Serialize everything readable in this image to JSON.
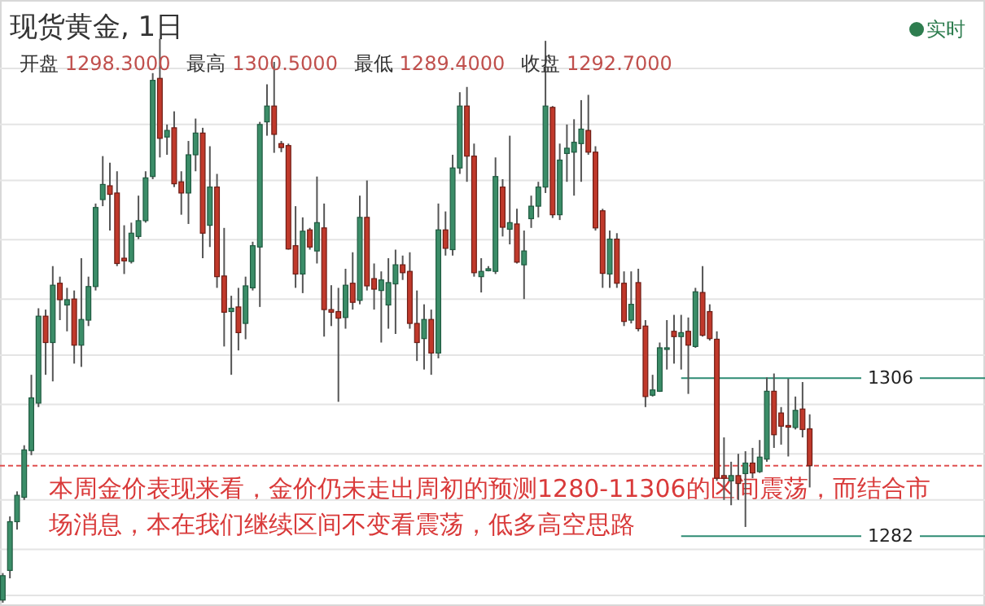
{
  "chart_data": {
    "type": "candlestick",
    "title": "现货黄金, 1日",
    "annotations": [
      "开盘 1298.3000",
      "最高 1300.5000",
      "最低 1289.4000",
      "收盘 1292.7000",
      "实时",
      "本周金价表现来看，金价仍未走出周初的预测1280-11306的区间震荡，而结合市场消息，本在我们继续区间不变看震荡，低多高空思路"
    ],
    "categories": [
      null,
      null,
      null,
      null,
      null,
      null,
      null,
      null,
      null,
      null,
      null,
      null,
      null,
      null,
      null,
      null,
      null,
      null,
      null,
      null,
      null,
      null,
      null,
      null,
      null,
      null,
      null,
      null,
      null,
      null,
      null,
      null,
      null,
      null,
      null,
      null,
      null,
      null,
      null,
      null,
      null,
      null,
      null,
      null,
      null,
      null,
      null,
      null,
      null,
      null,
      null,
      null,
      null,
      null,
      null,
      null,
      null,
      null,
      null,
      null,
      null,
      null,
      null,
      null,
      null,
      null,
      null,
      null,
      null,
      null,
      null,
      null,
      null,
      null,
      null,
      null,
      null,
      null,
      null,
      null,
      null,
      null,
      null,
      null,
      null,
      null,
      null,
      null,
      null,
      null,
      null,
      null,
      null,
      null,
      null,
      null,
      null,
      null,
      null,
      null,
      null,
      null,
      null,
      null,
      null,
      null,
      null,
      null,
      null,
      null,
      null,
      null,
      null,
      null
    ],
    "ohlc": [
      [
        1272.3,
        1276.4,
        1271.9,
        1276.0
      ],
      [
        1276.8,
        1285.0,
        1275.6,
        1284.2
      ],
      [
        1284.2,
        1288.8,
        1283.0,
        1288.2
      ],
      [
        1287.9,
        1295.8,
        1287.5,
        1295.1
      ],
      [
        1295.0,
        1306.5,
        1294.3,
        1303.0
      ],
      [
        1302.2,
        1316.6,
        1301.6,
        1315.4
      ],
      [
        1315.4,
        1316.4,
        1306.5,
        1311.4
      ],
      [
        1311.4,
        1323.0,
        1305.5,
        1320.1
      ],
      [
        1320.4,
        1321.4,
        1314.8,
        1317.9
      ],
      [
        1317.1,
        1319.7,
        1313.1,
        1317.9
      ],
      [
        1318.0,
        1319.3,
        1308.2,
        1311.0
      ],
      [
        1311.0,
        1324.2,
        1307.7,
        1314.9
      ],
      [
        1314.8,
        1321.4,
        1313.9,
        1319.9
      ],
      [
        1319.9,
        1332.5,
        1319.3,
        1331.9
      ],
      [
        1333.1,
        1339.7,
        1332.1,
        1335.4
      ],
      [
        1335.2,
        1338.7,
        1328.4,
        1333.9
      ],
      [
        1334.1,
        1337.4,
        1323.0,
        1323.4
      ],
      [
        1324.2,
        1329.2,
        1321.8,
        1323.8
      ],
      [
        1323.7,
        1329.6,
        1323.4,
        1328.0
      ],
      [
        1327.5,
        1333.7,
        1327.1,
        1329.9
      ],
      [
        1329.9,
        1337.4,
        1329.6,
        1336.4
      ],
      [
        1336.6,
        1352.3,
        1336.2,
        1351.2
      ],
      [
        1351.5,
        1357.5,
        1339.5,
        1342.4
      ],
      [
        1342.6,
        1344.5,
        1339.9,
        1343.6
      ],
      [
        1344.0,
        1346.5,
        1335.0,
        1335.5
      ],
      [
        1335.8,
        1337.4,
        1330.8,
        1334.1
      ],
      [
        1334.1,
        1342.0,
        1329.4,
        1339.9
      ],
      [
        1339.9,
        1345.4,
        1337.4,
        1343.2
      ],
      [
        1343.2,
        1344.0,
        1324.2,
        1328.0
      ],
      [
        1329.2,
        1341.2,
        1325.9,
        1335.0
      ],
      [
        1335.0,
        1337.0,
        1319.7,
        1321.4
      ],
      [
        1321.5,
        1328.8,
        1310.8,
        1316.0
      ],
      [
        1316.1,
        1318.5,
        1306.5,
        1316.6
      ],
      [
        1316.8,
        1319.7,
        1310.2,
        1312.9
      ],
      [
        1314.3,
        1321.4,
        1311.9,
        1320.0
      ],
      [
        1319.7,
        1326.7,
        1319.3,
        1326.1
      ],
      [
        1325.9,
        1344.9,
        1316.8,
        1344.5
      ],
      [
        1344.9,
        1350.6,
        1342.8,
        1347.3
      ],
      [
        1347.3,
        1354.0,
        1340.2,
        1343.0
      ],
      [
        1341.6,
        1342.0,
        1340.3,
        1341.0
      ],
      [
        1341.3,
        1341.6,
        1325.5,
        1325.6
      ],
      [
        1326.1,
        1332.1,
        1319.7,
        1321.8
      ],
      [
        1321.8,
        1330.4,
        1318.9,
        1328.3
      ],
      [
        1328.5,
        1328.8,
        1325.5,
        1325.9
      ],
      [
        1325.3,
        1336.6,
        1323.4,
        1329.6
      ],
      [
        1328.8,
        1332.5,
        1312.3,
        1316.4
      ],
      [
        1316.4,
        1320.1,
        1313.9,
        1316.0
      ],
      [
        1316.1,
        1319.7,
        1302.4,
        1315.1
      ],
      [
        1315.2,
        1322.6,
        1313.5,
        1320.1
      ],
      [
        1320.4,
        1325.1,
        1316.4,
        1317.5
      ],
      [
        1317.8,
        1333.7,
        1317.2,
        1330.4
      ],
      [
        1330.4,
        1336.0,
        1319.3,
        1320.0
      ],
      [
        1321.1,
        1323.4,
        1316.4,
        1319.5
      ],
      [
        1319.3,
        1322.2,
        1311.4,
        1320.9
      ],
      [
        1317.1,
        1324.2,
        1313.5,
        1320.5
      ],
      [
        1320.3,
        1325.5,
        1312.7,
        1323.2
      ],
      [
        1323.2,
        1324.6,
        1320.9,
        1322.0
      ],
      [
        1322.2,
        1325.1,
        1313.5,
        1314.3
      ],
      [
        1314.3,
        1319.3,
        1308.6,
        1311.4
      ],
      [
        1312.0,
        1317.2,
        1307.3,
        1314.9
      ],
      [
        1314.9,
        1316.4,
        1306.5,
        1309.8
      ],
      [
        1309.8,
        1332.5,
        1309.0,
        1328.5
      ],
      [
        1328.5,
        1331.3,
        1324.6,
        1325.7
      ],
      [
        1325.5,
        1339.9,
        1324.6,
        1337.9
      ],
      [
        1337.9,
        1349.4,
        1337.0,
        1347.3
      ],
      [
        1347.3,
        1350.2,
        1335.8,
        1339.7
      ],
      [
        1339.7,
        1341.6,
        1321.4,
        1322.0
      ],
      [
        1321.4,
        1324.2,
        1319.0,
        1322.2
      ],
      [
        1322.3,
        1323.0,
        1322.2,
        1322.6
      ],
      [
        1322.2,
        1339.5,
        1321.8,
        1336.6
      ],
      [
        1335.0,
        1336.2,
        1327.5,
        1328.9
      ],
      [
        1328.6,
        1342.8,
        1326.3,
        1329.6
      ],
      [
        1329.4,
        1331.7,
        1323.4,
        1323.6
      ],
      [
        1323.2,
        1328.4,
        1318.0,
        1325.3
      ],
      [
        1330.2,
        1333.7,
        1328.8,
        1332.1
      ],
      [
        1332.1,
        1335.8,
        1330.4,
        1335.0
      ],
      [
        1335.0,
        1357.2,
        1334.1,
        1347.3
      ],
      [
        1347.1,
        1347.3,
        1330.3,
        1330.8
      ],
      [
        1330.8,
        1341.6,
        1330.0,
        1339.1
      ],
      [
        1340.1,
        1344.5,
        1335.8,
        1340.9
      ],
      [
        1340.3,
        1345.3,
        1333.7,
        1341.8
      ],
      [
        1341.6,
        1348.2,
        1335.8,
        1343.8
      ],
      [
        1343.6,
        1349.0,
        1339.9,
        1340.3
      ],
      [
        1340.3,
        1341.2,
        1328.4,
        1328.8
      ],
      [
        1331.4,
        1331.7,
        1319.7,
        1321.9
      ],
      [
        1321.8,
        1328.4,
        1319.7,
        1327.1
      ],
      [
        1327.1,
        1328.0,
        1319.7,
        1320.4
      ],
      [
        1320.4,
        1322.2,
        1313.9,
        1314.6
      ],
      [
        1314.8,
        1322.2,
        1314.3,
        1317.2
      ],
      [
        1320.5,
        1322.6,
        1313.1,
        1313.5
      ],
      [
        1313.9,
        1314.8,
        1301.6,
        1303.2
      ],
      [
        1303.4,
        1306.5,
        1303.2,
        1304.2
      ],
      [
        1304.0,
        1311.4,
        1303.9,
        1310.6
      ],
      [
        1310.4,
        1314.8,
        1307.3,
        1310.6
      ],
      [
        1313.1,
        1315.6,
        1308.2,
        1312.3
      ],
      [
        1312.3,
        1315.6,
        1307.3,
        1312.9
      ],
      [
        1313.1,
        1315.2,
        1303.6,
        1311.0
      ],
      [
        1310.8,
        1319.7,
        1310.6,
        1319.1
      ],
      [
        1319.0,
        1323.0,
        1312.3,
        1312.5
      ],
      [
        1316.1,
        1317.2,
        1311.7,
        1312.0
      ],
      [
        1311.9,
        1313.1,
        1290.4,
        1290.8
      ],
      [
        1291.2,
        1297.0,
        1287.5,
        1290.8
      ],
      [
        1290.4,
        1293.3,
        1286.7,
        1291.2
      ],
      [
        1291.2,
        1294.5,
        1287.5,
        1290.0
      ],
      [
        1291.5,
        1294.9,
        1283.4,
        1293.1
      ],
      [
        1293.1,
        1295.4,
        1290.8,
        1291.6
      ],
      [
        1291.8,
        1296.6,
        1291.6,
        1294.0
      ],
      [
        1293.7,
        1306.1,
        1293.3,
        1304.0
      ],
      [
        1304.0,
        1306.7,
        1295.4,
        1297.4
      ],
      [
        1300.7,
        1301.6,
        1295.9,
        1298.7
      ],
      [
        1298.8,
        1305.9,
        1294.1,
        1298.6
      ],
      [
        1298.5,
        1303.2,
        1298.2,
        1301.1
      ],
      [
        1301.3,
        1305.4,
        1297.0,
        1298.2
      ],
      [
        1298.3,
        1300.5,
        1289.4,
        1292.7
      ]
    ],
    "colors": [
      "#3b8d68",
      "#3b8d68",
      "#3b8d68",
      "#3b8d68",
      "#3b8d68",
      "#3b8d68",
      "#c0392b",
      "#3b8d68",
      "#c0392b",
      "#3b8d68",
      "#c0392b",
      "#3b8d68",
      "#3b8d68",
      "#3b8d68",
      "#3b8d68",
      "#c0392b",
      "#c0392b",
      "#c0392b",
      "#3b8d68",
      "#3b8d68",
      "#3b8d68",
      "#3b8d68",
      "#c0392b",
      "#3b8d68",
      "#c0392b",
      "#c0392b",
      "#3b8d68",
      "#3b8d68",
      "#c0392b",
      "#3b8d68",
      "#c0392b",
      "#c0392b",
      "#3b8d68",
      "#c0392b",
      "#3b8d68",
      "#3b8d68",
      "#3b8d68",
      "#3b8d68",
      "#c0392b",
      "#c0392b",
      "#c0392b",
      "#c0392b",
      "#3b8d68",
      "#c0392b",
      "#3b8d68",
      "#c0392b",
      "#c0392b",
      "#c0392b",
      "#3b8d68",
      "#c0392b",
      "#3b8d68",
      "#c0392b",
      "#c0392b",
      "#3b8d68",
      "#3b8d68",
      "#3b8d68",
      "#c0392b",
      "#c0392b",
      "#c0392b",
      "#3b8d68",
      "#c0392b",
      "#3b8d68",
      "#c0392b",
      "#3b8d68",
      "#3b8d68",
      "#c0392b",
      "#c0392b",
      "#3b8d68",
      "#3b8d68",
      "#3b8d68",
      "#c0392b",
      "#3b8d68",
      "#c0392b",
      "#3b8d68",
      "#3b8d68",
      "#3b8d68",
      "#3b8d68",
      "#c0392b",
      "#3b8d68",
      "#3b8d68",
      "#3b8d68",
      "#3b8d68",
      "#c0392b",
      "#c0392b",
      "#c0392b",
      "#3b8d68",
      "#c0392b",
      "#c0392b",
      "#3b8d68",
      "#c0392b",
      "#c0392b",
      "#3b8d68",
      "#3b8d68",
      "#3b8d68",
      "#c0392b",
      "#3b8d68",
      "#c0392b",
      "#3b8d68",
      "#c0392b",
      "#c0392b",
      "#c0392b",
      "#c0392b",
      "#3b8d68",
      "#c0392b",
      "#3b8d68",
      "#c0392b",
      "#3b8d68",
      "#3b8d68",
      "#c0392b",
      "#c0392b",
      "#c0392b",
      "#3b8d68",
      "#c0392b",
      "#c0392b"
    ],
    "ylim": [
      1271.4,
      1363.4
    ],
    "yticks": [
      {
        "value": 1306,
        "label": "1306"
      },
      {
        "value": 1282,
        "label": "1282"
      },
      {
        "value": 1353,
        "label": null
      },
      {
        "value": 1344.5,
        "label": null
      },
      {
        "value": 1336,
        "label": null
      },
      {
        "value": 1327,
        "label": null
      },
      {
        "value": 1318,
        "label": null
      },
      {
        "value": 1309.5,
        "label": null
      },
      {
        "value": 1302,
        "label": null
      },
      {
        "value": 1294.5,
        "label": null
      },
      {
        "value": 1287.5,
        "label": null
      },
      {
        "value": 1280,
        "label": null
      },
      {
        "value": 1273,
        "label": null
      }
    ],
    "grid": "y",
    "ref_lines": [
      {
        "axis": "y",
        "value": 1306,
        "color": "#2e8b73",
        "line_style": "solid"
      },
      {
        "axis": "y",
        "value": 1282,
        "color": "#2e8b73",
        "line_style": "solid"
      },
      {
        "axis": "y",
        "value": 1292.7,
        "label": null,
        "color": "#e05050",
        "line_style": "dashed"
      }
    ]
  }
}
